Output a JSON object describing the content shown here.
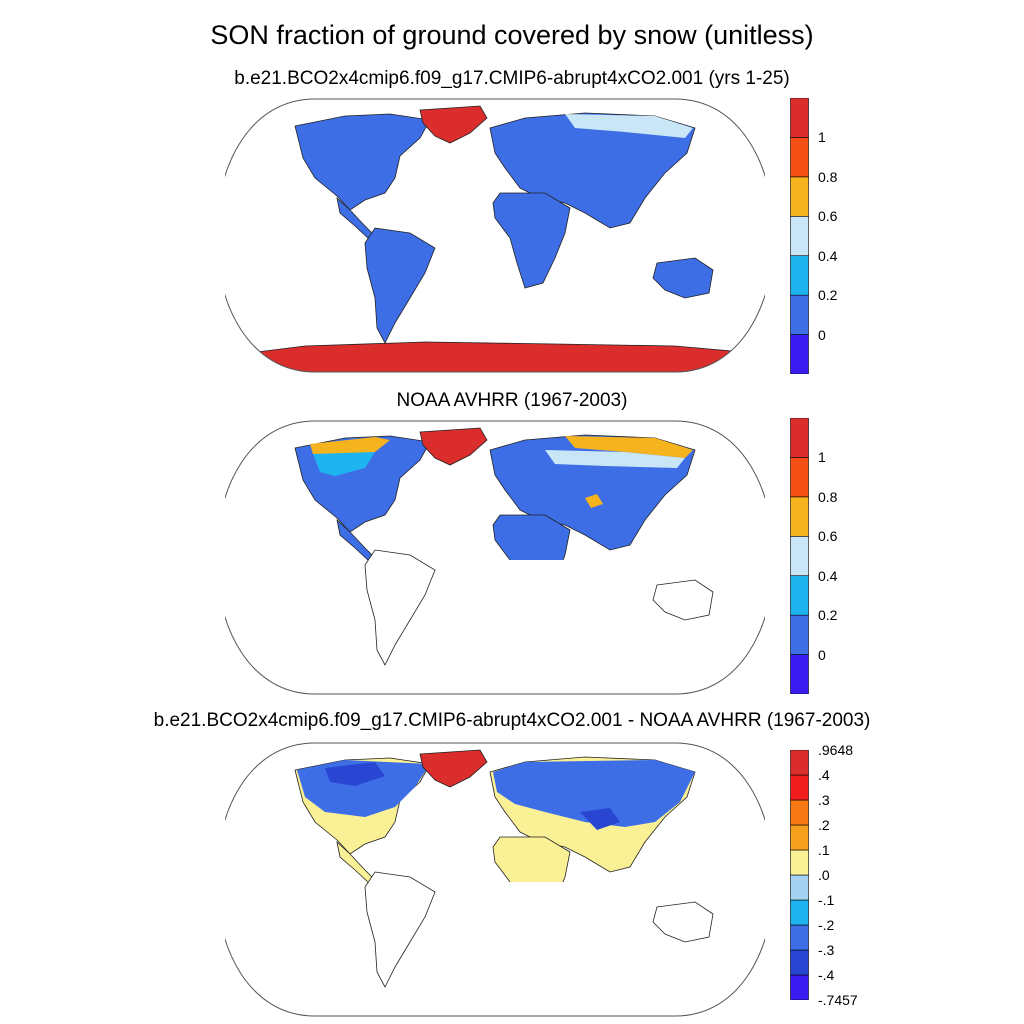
{
  "title": "SON fraction of ground covered by snow (unitless)",
  "panels": [
    {
      "subtitle": "b.e21.BCO2x4cmip6.f09_g17.CMIP6-abrupt4xCO2.001 (yrs 1-25)",
      "colorbar": {
        "colors": [
          "#3a1cf0",
          "#3d6ee6",
          "#1eb4f0",
          "#c8e6f5",
          "#f5b41e",
          "#f55014",
          "#dc2d2d"
        ],
        "labels": [
          "0",
          "0.2",
          "0.4",
          "0.6",
          "0.8",
          "1"
        ]
      }
    },
    {
      "subtitle": "NOAA AVHRR (1967-2003)",
      "colorbar": {
        "colors": [
          "#3a1cf0",
          "#3d6ee6",
          "#1eb4f0",
          "#c8e6f5",
          "#f5b41e",
          "#f55014",
          "#dc2d2d"
        ],
        "labels": [
          "0",
          "0.2",
          "0.4",
          "0.6",
          "0.8",
          "1"
        ]
      }
    },
    {
      "subtitle": "b.e21.BCO2x4cmip6.f09_g17.CMIP6-abrupt4xCO2.001 - NOAA AVHRR (1967-2003)",
      "colorbar": {
        "colors": [
          "#3a1cf0",
          "#2846d2",
          "#3d6ee6",
          "#1eb4f0",
          "#a5d2f0",
          "#faf096",
          "#f5a01e",
          "#f57814",
          "#f01e1e",
          "#dc2d2d"
        ],
        "labels": [
          "-.7457",
          "-.4",
          "-.3",
          "-.2",
          "-.1",
          ".0",
          ".1",
          ".2",
          ".3",
          ".4",
          ".9648"
        ]
      }
    }
  ]
}
